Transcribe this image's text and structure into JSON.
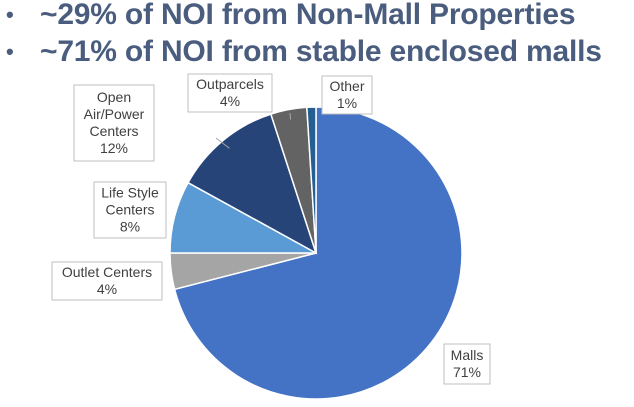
{
  "headline": {
    "bullets": [
      {
        "marker": "•",
        "text": "~29% of NOI from Non-Mall Properties"
      },
      {
        "marker": "•",
        "text": "~71% of NOI from stable enclosed malls"
      }
    ],
    "text_color": "#4a5d7e"
  },
  "chart_data": {
    "type": "pie",
    "title": "",
    "start_angle_deg": 0,
    "direction": "clockwise",
    "slices": [
      {
        "name": "Malls",
        "value": 71,
        "label_lines": [
          "Malls",
          "71%"
        ],
        "color": "#4472c4"
      },
      {
        "name": "Outlet Centers",
        "value": 4,
        "label_lines": [
          "Outlet Centers",
          "4%"
        ],
        "color": "#a5a5a5"
      },
      {
        "name": "Life Style Centers",
        "value": 8,
        "label_lines": [
          "Life Style",
          "Centers",
          "8%"
        ],
        "color": "#5b9bd5"
      },
      {
        "name": "Open Air/Power Centers",
        "value": 12,
        "label_lines": [
          "Open",
          "Air/Power",
          "Centers",
          "12%"
        ],
        "color": "#264478"
      },
      {
        "name": "Outparcels",
        "value": 4,
        "label_lines": [
          "Outparcels",
          "4%"
        ],
        "color": "#636363"
      },
      {
        "name": "Other",
        "value": 1,
        "label_lines": [
          "Other",
          "1%"
        ],
        "color": "#255e91"
      }
    ]
  }
}
